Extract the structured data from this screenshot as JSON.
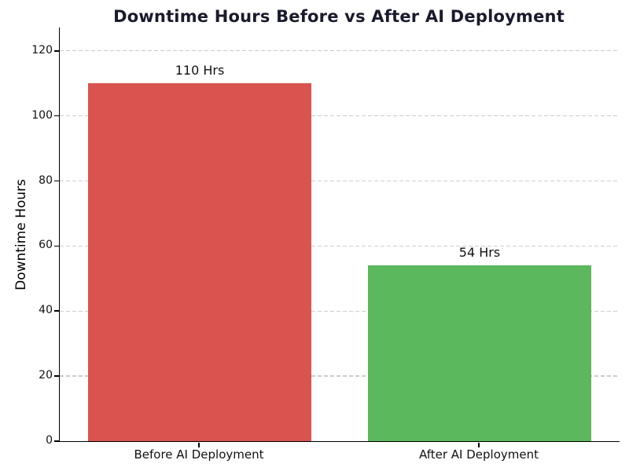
{
  "figure": {
    "title": "Downtime Hours Before vs After AI Deployment",
    "ylabel": "Downtime Hours"
  },
  "chart_data": {
    "type": "bar",
    "title": "Downtime Hours Before vs After AI Deployment",
    "xlabel": "",
    "ylabel": "Downtime Hours",
    "categories": [
      "Before AI Deployment",
      "After AI Deployment"
    ],
    "values": [
      110,
      54
    ],
    "value_labels": [
      "110 Hrs",
      "54 Hrs"
    ],
    "bar_colors": [
      "#d9534f",
      "#5cb85c"
    ],
    "yticks": [
      0,
      20,
      40,
      60,
      80,
      100,
      120
    ],
    "ylim": [
      0,
      127.2
    ],
    "bar_width_ratio": 0.8,
    "grid": "horizontal-dashed",
    "grid_color": "#cccccc",
    "axis_color": "#000000",
    "title_color": "#1a1a2e",
    "background": "#ffffff",
    "legend": "none"
  }
}
